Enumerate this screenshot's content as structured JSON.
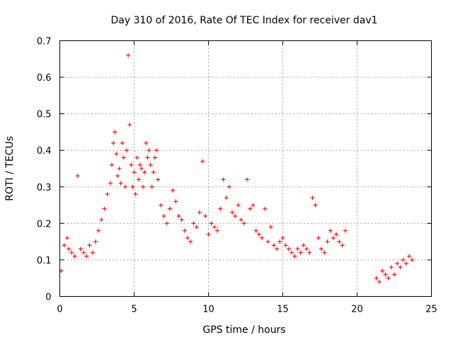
{
  "chart_data": {
    "type": "scatter",
    "title": "Day 310 of 2016, Rate Of TEC Index for receiver dav1",
    "xlabel": "GPS time / hours",
    "ylabel": "ROTI / TECUs",
    "xlim": [
      0,
      25
    ],
    "ylim": [
      0,
      0.7
    ],
    "x_ticks": [
      0,
      5,
      10,
      15,
      20,
      25
    ],
    "x_tick_labels": [
      "0",
      "5",
      "10",
      "15",
      "20",
      "25"
    ],
    "y_ticks": [
      0,
      0.1,
      0.2,
      0.3,
      0.4,
      0.5,
      0.6,
      0.7
    ],
    "y_tick_labels": [
      "0",
      "0.1",
      "0.2",
      "0.3",
      "0.4",
      "0.5",
      "0.6",
      "0.7"
    ],
    "grid": true,
    "marker": "plus",
    "color": "#ff0000",
    "series": [
      {
        "x": [
          0.1,
          0.3,
          0.5,
          0.6,
          0.8,
          1.0,
          1.2,
          1.4,
          1.6,
          1.8,
          2.0,
          2.2,
          2.4,
          2.6,
          2.8,
          3.0,
          3.2,
          3.4,
          3.5,
          3.6,
          3.7,
          3.8,
          3.9,
          4.0,
          4.1,
          4.2,
          4.3,
          4.4,
          4.5,
          4.6,
          4.7,
          4.8,
          4.9,
          5.0,
          5.1,
          5.2,
          5.3,
          5.4,
          5.5,
          5.6,
          5.7,
          5.8,
          5.9,
          6.0,
          6.1,
          6.2,
          6.3,
          6.4,
          6.5,
          6.6,
          6.8,
          7.0,
          7.2,
          7.4,
          7.6,
          7.8,
          8.0,
          8.2,
          8.4,
          8.6,
          8.8,
          9.0,
          9.2,
          9.4,
          9.6,
          9.8,
          10.0,
          10.2,
          10.4,
          10.6,
          10.8,
          11.0,
          11.2,
          11.4,
          11.6,
          11.8,
          12.0,
          12.2,
          12.4,
          12.6,
          12.8,
          13.0,
          13.2,
          13.4,
          13.6,
          13.8,
          14.0,
          14.2,
          14.4,
          14.6,
          14.8,
          15.0,
          15.2,
          15.4,
          15.6,
          15.8,
          16.0,
          16.2,
          16.4,
          16.6,
          16.8,
          17.0,
          17.2,
          17.4,
          17.6,
          17.8,
          18.0,
          18.2,
          18.4,
          18.6,
          18.8,
          19.0,
          19.2,
          21.3,
          21.5,
          21.7,
          21.9,
          22.1,
          22.3,
          22.5,
          22.7,
          22.9,
          23.1,
          23.3,
          23.5,
          23.7
        ],
        "y": [
          0.07,
          0.14,
          0.16,
          0.13,
          0.12,
          0.11,
          0.33,
          0.13,
          0.12,
          0.11,
          0.14,
          0.12,
          0.15,
          0.18,
          0.21,
          0.24,
          0.28,
          0.31,
          0.36,
          0.42,
          0.45,
          0.39,
          0.33,
          0.35,
          0.31,
          0.42,
          0.38,
          0.3,
          0.4,
          0.66,
          0.47,
          0.36,
          0.3,
          0.34,
          0.28,
          0.38,
          0.32,
          0.36,
          0.35,
          0.3,
          0.34,
          0.42,
          0.38,
          0.4,
          0.36,
          0.3,
          0.34,
          0.38,
          0.4,
          0.32,
          0.25,
          0.22,
          0.2,
          0.24,
          0.29,
          0.26,
          0.22,
          0.21,
          0.18,
          0.16,
          0.15,
          0.2,
          0.19,
          0.23,
          0.37,
          0.22,
          0.17,
          0.2,
          0.19,
          0.18,
          0.24,
          0.32,
          0.27,
          0.3,
          0.23,
          0.22,
          0.25,
          0.21,
          0.2,
          0.32,
          0.24,
          0.25,
          0.18,
          0.17,
          0.16,
          0.24,
          0.15,
          0.19,
          0.14,
          0.13,
          0.15,
          0.16,
          0.14,
          0.13,
          0.12,
          0.11,
          0.13,
          0.12,
          0.14,
          0.13,
          0.12,
          0.27,
          0.25,
          0.16,
          0.13,
          0.12,
          0.15,
          0.18,
          0.16,
          0.17,
          0.15,
          0.14,
          0.18,
          0.05,
          0.04,
          0.07,
          0.06,
          0.05,
          0.08,
          0.06,
          0.09,
          0.08,
          0.1,
          0.09,
          0.11,
          0.1
        ]
      }
    ]
  }
}
